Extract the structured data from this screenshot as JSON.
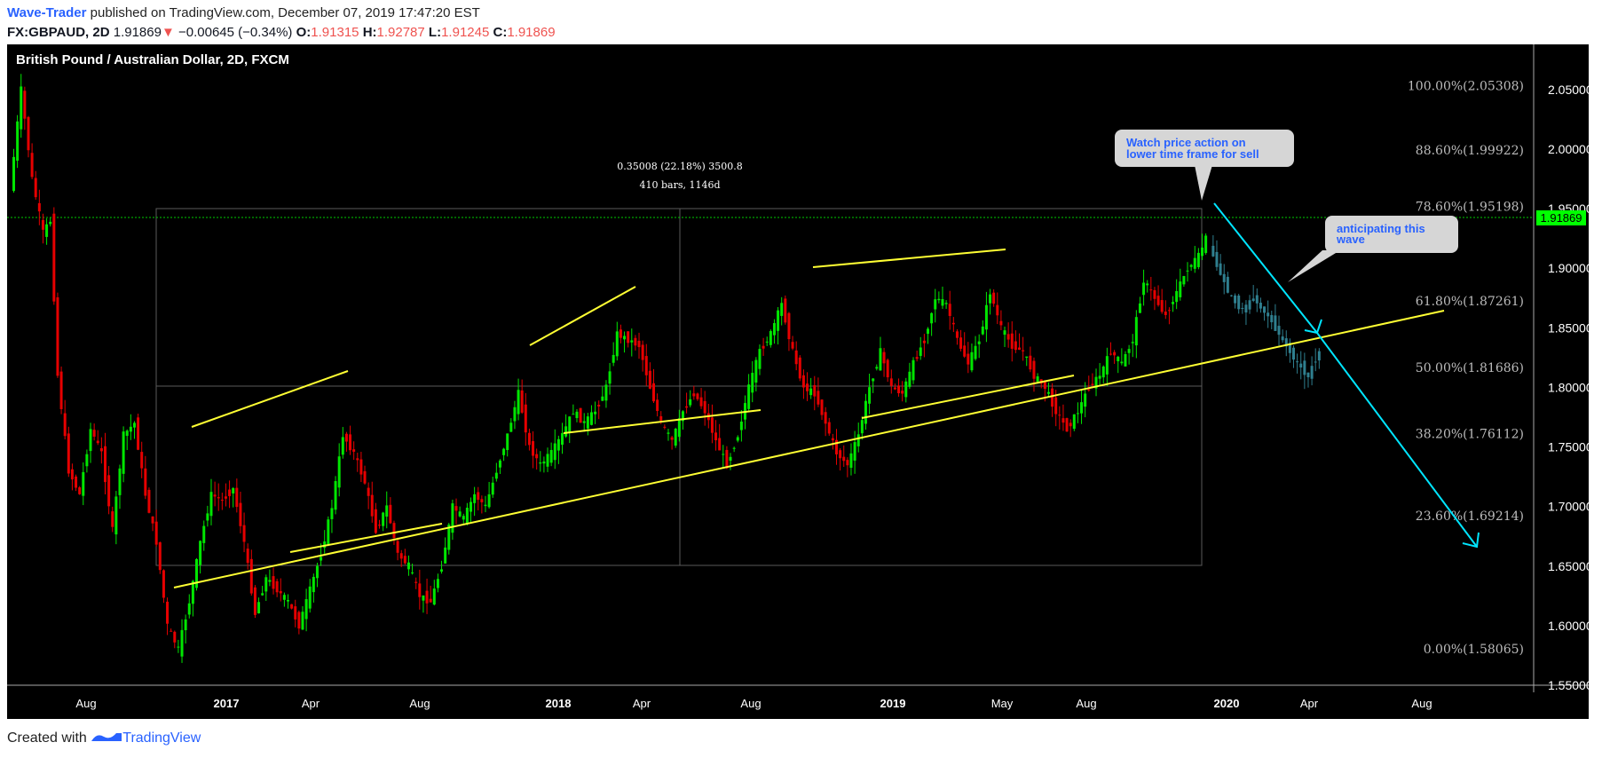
{
  "header": {
    "author": "Wave-Trader",
    "published_text": " published on TradingView.com, December 07, 2019 17:47:20 EST",
    "symbol": "FX:GBPAUD, 2D",
    "last": "1.91869",
    "change_arrow": "▼",
    "change": "−0.00645 (−0.34%)",
    "o_label": "O:",
    "o_value": "1.91315",
    "h_label": "H:",
    "h_value": "1.92787",
    "l_label": "L:",
    "l_value": "1.91245",
    "c_label": "C:",
    "c_value": "1.91869"
  },
  "footer": {
    "prefix": "Created with ",
    "brand": "TradingView"
  },
  "colors": {
    "background": "#000000",
    "up": "#00e600",
    "down": "#e60000",
    "projection": "#2f7f8f",
    "trendline": "#ffff33",
    "arrow": "#00e5ff",
    "price_tag": "#00ff00"
  },
  "chart_data": {
    "type": "candlestick",
    "title": "British Pound / Australian Dollar, 2D, FXCM",
    "ylim": [
      1.55,
      2.07
    ],
    "y_ticks": [
      "2.05000",
      "2.00000",
      "1.95000",
      "1.90000",
      "1.85000",
      "1.80000",
      "1.75000",
      "1.70000",
      "1.65000",
      "1.60000",
      "1.55000"
    ],
    "x_ticks": [
      "Aug",
      "2017",
      "Apr",
      "Aug",
      "2018",
      "Apr",
      "Aug",
      "2019",
      "May",
      "Aug",
      "2020",
      "Apr",
      "Aug"
    ],
    "current_price": "1.91869",
    "fib_levels": [
      {
        "label": "100.00%(2.05308)",
        "value": 2.05308
      },
      {
        "label": "88.60%(1.99922)",
        "value": 1.99922
      },
      {
        "label": "78.60%(1.95198)",
        "value": 1.95198
      },
      {
        "label": "61.80%(1.87261)",
        "value": 1.87261
      },
      {
        "label": "50.00%(1.81686)",
        "value": 1.81686
      },
      {
        "label": "38.20%(1.76112)",
        "value": 1.76112
      },
      {
        "label": "23.60%(1.69214)",
        "value": 1.69214
      },
      {
        "label": "0.00%(1.58065)",
        "value": 1.58065
      }
    ],
    "measure": {
      "line1": "0.35008 (22.18%) 3500.8",
      "line2": "410 bars, 1146d"
    },
    "callouts": [
      {
        "text_line1": "Watch price action on",
        "text_line2": "lower time frame for sell"
      },
      {
        "text_line1": "anticipating this",
        "text_line2": "wave"
      }
    ],
    "price_path": [
      [
        0,
        1.965
      ],
      [
        3,
        2.05
      ],
      [
        6,
        1.975
      ],
      [
        9,
        1.93
      ],
      [
        11,
        1.94
      ],
      [
        13,
        1.81
      ],
      [
        16,
        1.73
      ],
      [
        19,
        1.71
      ],
      [
        22,
        1.765
      ],
      [
        25,
        1.745
      ],
      [
        28,
        1.68
      ],
      [
        31,
        1.76
      ],
      [
        34,
        1.77
      ],
      [
        37,
        1.71
      ],
      [
        40,
        1.67
      ],
      [
        43,
        1.6
      ],
      [
        46,
        1.58
      ],
      [
        49,
        1.62
      ],
      [
        52,
        1.67
      ],
      [
        55,
        1.71
      ],
      [
        58,
        1.705
      ],
      [
        61,
        1.715
      ],
      [
        64,
        1.67
      ],
      [
        67,
        1.61
      ],
      [
        70,
        1.64
      ],
      [
        73,
        1.63
      ],
      [
        76,
        1.62
      ],
      [
        79,
        1.6
      ],
      [
        82,
        1.63
      ],
      [
        85,
        1.66
      ],
      [
        88,
        1.7
      ],
      [
        91,
        1.76
      ],
      [
        94,
        1.745
      ],
      [
        97,
        1.72
      ],
      [
        100,
        1.68
      ],
      [
        103,
        1.7
      ],
      [
        106,
        1.66
      ],
      [
        109,
        1.65
      ],
      [
        112,
        1.625
      ],
      [
        115,
        1.62
      ],
      [
        118,
        1.65
      ],
      [
        121,
        1.7
      ],
      [
        124,
        1.69
      ],
      [
        127,
        1.71
      ],
      [
        130,
        1.7
      ],
      [
        133,
        1.73
      ],
      [
        136,
        1.76
      ],
      [
        139,
        1.795
      ],
      [
        142,
        1.75
      ],
      [
        145,
        1.735
      ],
      [
        148,
        1.745
      ],
      [
        151,
        1.76
      ],
      [
        154,
        1.78
      ],
      [
        157,
        1.77
      ],
      [
        160,
        1.78
      ],
      [
        163,
        1.8
      ],
      [
        166,
        1.845
      ],
      [
        169,
        1.84
      ],
      [
        172,
        1.835
      ],
      [
        175,
        1.8
      ],
      [
        178,
        1.77
      ],
      [
        181,
        1.755
      ],
      [
        184,
        1.78
      ],
      [
        187,
        1.795
      ],
      [
        190,
        1.78
      ],
      [
        193,
        1.755
      ],
      [
        196,
        1.735
      ],
      [
        199,
        1.76
      ],
      [
        202,
        1.8
      ],
      [
        205,
        1.83
      ],
      [
        208,
        1.845
      ],
      [
        211,
        1.87
      ],
      [
        214,
        1.83
      ],
      [
        217,
        1.8
      ],
      [
        220,
        1.795
      ],
      [
        223,
        1.77
      ],
      [
        226,
        1.745
      ],
      [
        229,
        1.735
      ],
      [
        232,
        1.76
      ],
      [
        235,
        1.8
      ],
      [
        238,
        1.83
      ],
      [
        241,
        1.8
      ],
      [
        244,
        1.795
      ],
      [
        247,
        1.82
      ],
      [
        250,
        1.84
      ],
      [
        253,
        1.875
      ],
      [
        256,
        1.87
      ],
      [
        259,
        1.84
      ],
      [
        262,
        1.82
      ],
      [
        265,
        1.84
      ],
      [
        268,
        1.88
      ],
      [
        271,
        1.85
      ],
      [
        274,
        1.835
      ],
      [
        277,
        1.83
      ],
      [
        280,
        1.81
      ],
      [
        283,
        1.8
      ],
      [
        286,
        1.78
      ],
      [
        289,
        1.765
      ],
      [
        292,
        1.78
      ],
      [
        295,
        1.8
      ],
      [
        298,
        1.81
      ],
      [
        301,
        1.83
      ],
      [
        304,
        1.82
      ],
      [
        307,
        1.84
      ],
      [
        310,
        1.89
      ],
      [
        313,
        1.875
      ],
      [
        316,
        1.86
      ],
      [
        319,
        1.88
      ],
      [
        322,
        1.9
      ],
      [
        325,
        1.91
      ],
      [
        327,
        1.925
      ]
    ],
    "projection_path": [
      [
        328,
        1.918
      ],
      [
        331,
        1.895
      ],
      [
        334,
        1.875
      ],
      [
        337,
        1.865
      ],
      [
        340,
        1.875
      ],
      [
        343,
        1.865
      ],
      [
        346,
        1.85
      ],
      [
        349,
        1.835
      ],
      [
        352,
        1.82
      ],
      [
        355,
        1.81
      ],
      [
        358,
        1.83
      ]
    ]
  }
}
